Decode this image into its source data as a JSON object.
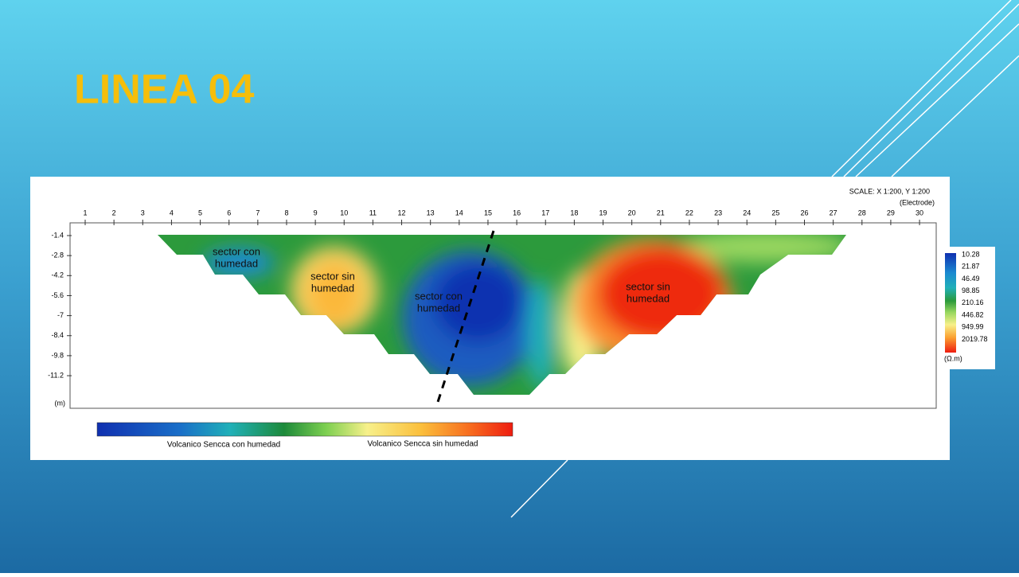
{
  "title": "LINEA 04",
  "section": {
    "scale": "SCALE: X 1:200, Y 1:200",
    "electrode_label": "(Electrode)",
    "electrodes": [
      1,
      2,
      3,
      4,
      5,
      6,
      7,
      8,
      9,
      10,
      11,
      12,
      13,
      14,
      15,
      16,
      17,
      18,
      19,
      20,
      21,
      22,
      23,
      24,
      25,
      26,
      27,
      28,
      29,
      30
    ],
    "depths": [
      -1.4,
      -2.8,
      -4.2,
      -5.6,
      -7.0,
      -8.4,
      -9.8,
      -11.2
    ],
    "depth_unit": "(m)",
    "annotations": [
      {
        "lines": [
          "sector con",
          "humedad"
        ]
      },
      {
        "lines": [
          "sector sin",
          "humedad"
        ]
      },
      {
        "lines": [
          "sector con",
          "humedad"
        ]
      },
      {
        "lines": [
          "sector sin",
          "humedad"
        ]
      }
    ],
    "legend": {
      "values": [
        10.28,
        21.87,
        46.49,
        98.85,
        210.16,
        446.82,
        949.99,
        2019.78
      ],
      "unit": "(Ω.m)"
    },
    "colorbar_labels": [
      "Volcanico Sencca con humedad",
      "Volcanico Sencca sin humedad"
    ]
  }
}
